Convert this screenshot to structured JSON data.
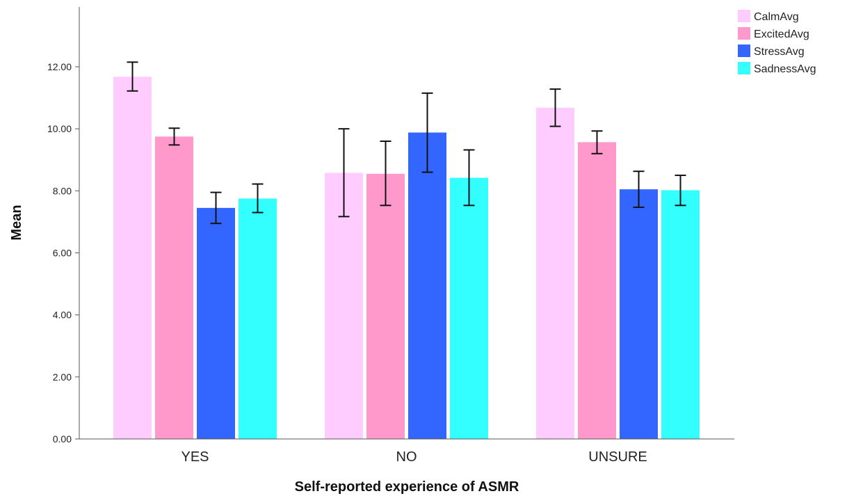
{
  "chart_data": {
    "type": "bar",
    "xlabel": "Self-reported experience of ASMR",
    "ylabel": "Mean",
    "ylim": [
      0,
      13
    ],
    "yticks": [
      "0.00",
      "2.00",
      "4.00",
      "6.00",
      "8.00",
      "10.00",
      "12.00"
    ],
    "categories": [
      "YES",
      "NO",
      "UNSURE"
    ],
    "legend_position": "top-right",
    "error_bars": true,
    "series": [
      {
        "name": "CalmAvg",
        "color": "#ffccff",
        "values": [
          11.68,
          8.58,
          10.68
        ],
        "err_low": [
          11.22,
          7.17,
          10.08
        ],
        "err_high": [
          12.15,
          10.0,
          11.28
        ]
      },
      {
        "name": "ExcitedAvg",
        "color": "#ff99cc",
        "values": [
          9.75,
          8.55,
          9.57
        ],
        "err_low": [
          9.48,
          7.53,
          9.2
        ],
        "err_high": [
          10.02,
          9.6,
          9.93
        ]
      },
      {
        "name": "StressAvg",
        "color": "#3366ff",
        "values": [
          7.45,
          9.88,
          8.05
        ],
        "err_low": [
          6.95,
          8.6,
          7.47
        ],
        "err_high": [
          7.95,
          11.15,
          8.63
        ]
      },
      {
        "name": "SadnessAvg",
        "color": "#33ffff",
        "values": [
          7.75,
          8.42,
          8.02
        ],
        "err_low": [
          7.3,
          7.53,
          7.53
        ],
        "err_high": [
          8.22,
          9.32,
          8.5
        ]
      }
    ]
  }
}
